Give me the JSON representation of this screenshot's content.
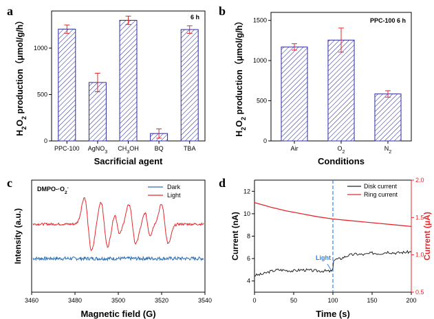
{
  "colors": {
    "bar_stroke": "#2a2aa0",
    "error": "#e8262a",
    "dark": "#2b6cb0",
    "light": "#e8262a",
    "disk": "#222222",
    "ring": "#e8262a",
    "vline": "#2f80ed",
    "light_label": "#2f80ed"
  },
  "chart_data": [
    {
      "panel": "a",
      "type": "bar",
      "annotation": "6 h",
      "categories": [
        "PPC-100",
        "AgNO",
        "CH",
        "BQ",
        "TBA"
      ],
      "category_labels": [
        [
          "PPC-100"
        ],
        [
          "AgNO",
          "3"
        ],
        [
          "CH",
          "3",
          "OH"
        ],
        [
          "BQ"
        ],
        [
          "TBA"
        ]
      ],
      "values": [
        1205,
        630,
        1300,
        80,
        1200
      ],
      "errors": [
        45,
        100,
        45,
        50,
        40
      ],
      "ylabel_parts": [
        "H",
        "2",
        "O",
        "2",
        " production（μmol/g/h）"
      ],
      "xlabel": "Sacrificial agent",
      "ylim": [
        0,
        1400
      ],
      "yticks": [
        0,
        500,
        1000
      ],
      "hatch": "diagonal"
    },
    {
      "panel": "b",
      "type": "bar",
      "annotation": "PPC-100  6 h",
      "categories": [
        "Air",
        "O",
        "N"
      ],
      "category_labels": [
        [
          "Air"
        ],
        [
          "O",
          "2"
        ],
        [
          "N",
          "2"
        ]
      ],
      "values": [
        1170,
        1255,
        585
      ],
      "errors": [
        40,
        150,
        40
      ],
      "ylabel_parts": [
        "H",
        "2",
        "O",
        "2",
        " production（μmol/g/h）"
      ],
      "xlabel": "Conditions",
      "ylim": [
        0,
        1600
      ],
      "yticks": [
        0,
        500,
        1000,
        1500
      ],
      "hatch": "diagonal"
    },
    {
      "panel": "c",
      "type": "line",
      "annotation_parts": [
        "DMPO-·O",
        "2",
        "-"
      ],
      "xlabel": "Magnetic field (G)",
      "ylabel": "Intensity (a.u.)",
      "xlim": [
        3460,
        3540
      ],
      "xticks": [
        3460,
        3480,
        3500,
        3520,
        3540
      ],
      "series": [
        {
          "name": "Dark",
          "baseline": 0,
          "noise": 0.06,
          "peaks": []
        },
        {
          "name": "Light",
          "baseline": 1,
          "noise": 0.04,
          "peaks": [
            {
              "x": 3486,
              "a": 0.95,
              "w": 1.7
            },
            {
              "x": 3493.5,
              "a": 0.8,
              "w": 1.6
            },
            {
              "x": 3499.5,
              "a": 0.35,
              "w": 1.2
            },
            {
              "x": 3506.5,
              "a": 0.7,
              "w": 1.6
            },
            {
              "x": 3513.5,
              "a": 0.4,
              "w": 1.2
            },
            {
              "x": 3521.5,
              "a": 0.7,
              "w": 1.6
            }
          ]
        }
      ]
    },
    {
      "panel": "d",
      "type": "line",
      "xlabel": "Time (s)",
      "ylabel_left": "Current (nA)",
      "ylabel_right": "Current (μA)",
      "xlim": [
        0,
        200
      ],
      "xticks": [
        0,
        50,
        100,
        150,
        200
      ],
      "ylim_left": [
        3,
        13
      ],
      "yticks_left": [
        4,
        6,
        8,
        10,
        12
      ],
      "ylim_right": [
        0.5,
        2.0
      ],
      "yticks_right": [
        "0.5",
        "1.0",
        "1.5",
        "2.0"
      ],
      "light_time": 100,
      "light_label": "Light",
      "series": [
        {
          "name": "Disk current",
          "axis": "left",
          "x": [
            0,
            10,
            20,
            30,
            40,
            50,
            60,
            70,
            80,
            90,
            98,
            100,
            101,
            110,
            120,
            130,
            140,
            150,
            160,
            170,
            180,
            190,
            200
          ],
          "y": [
            4.5,
            4.6,
            4.85,
            5.0,
            4.95,
            4.9,
            5.0,
            4.95,
            4.9,
            4.9,
            4.85,
            5.0,
            5.9,
            6.0,
            6.3,
            6.4,
            6.35,
            6.5,
            6.45,
            6.6,
            6.5,
            6.55,
            6.6
          ]
        },
        {
          "name": "Ring current",
          "axis": "right",
          "x": [
            0,
            20,
            40,
            60,
            80,
            100,
            120,
            140,
            160,
            180,
            200
          ],
          "y": [
            1.7,
            1.64,
            1.59,
            1.55,
            1.51,
            1.48,
            1.46,
            1.44,
            1.42,
            1.4,
            1.38
          ]
        }
      ]
    }
  ]
}
